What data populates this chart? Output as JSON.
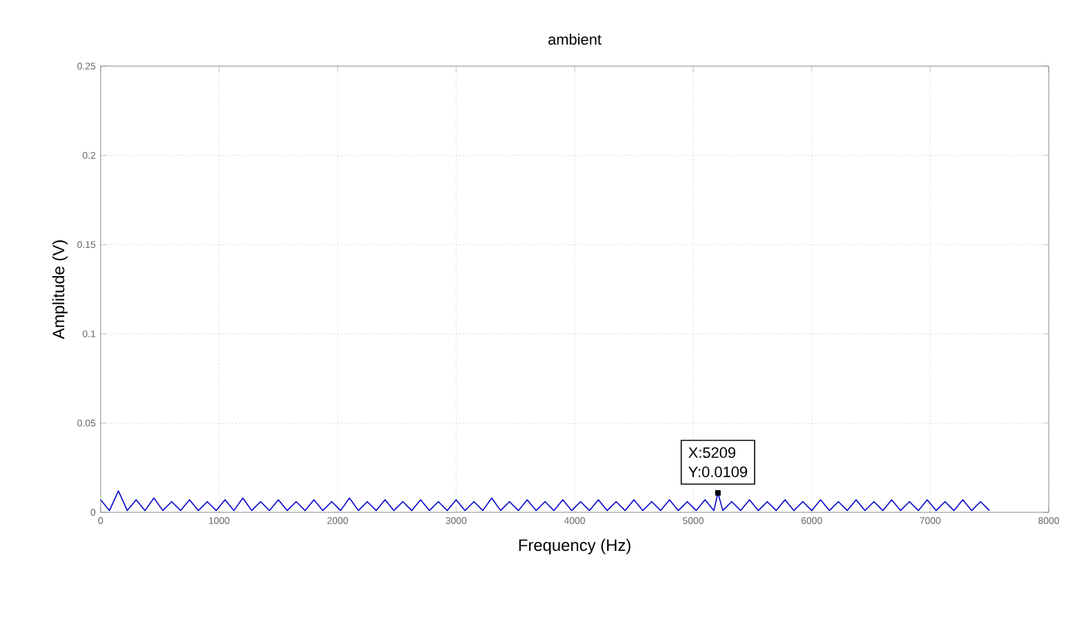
{
  "chart_data": {
    "type": "line",
    "title": "ambient",
    "xlabel": "Frequency (Hz)",
    "ylabel": "Amplitude (V)",
    "xlim": [
      0,
      8000
    ],
    "ylim": [
      0,
      0.25
    ],
    "xticks": [
      0,
      1000,
      2000,
      3000,
      4000,
      5000,
      6000,
      7000,
      8000
    ],
    "yticks": [
      0,
      0.05,
      0.1,
      0.15,
      0.2,
      0.25
    ],
    "grid": true,
    "annotations": [
      {
        "text": "X:5209",
        "x": 5209,
        "y": 0.0109
      },
      {
        "text": "Y:0.0109",
        "x": 5209,
        "y": 0.0109
      }
    ],
    "series": [
      {
        "color": "#0000cc",
        "x": [
          0,
          75,
          150,
          225,
          300,
          375,
          450,
          525,
          600,
          675,
          750,
          825,
          900,
          975,
          1050,
          1125,
          1200,
          1275,
          1350,
          1425,
          1500,
          1575,
          1650,
          1725,
          1800,
          1875,
          1950,
          2025,
          2100,
          2175,
          2250,
          2325,
          2400,
          2475,
          2550,
          2625,
          2700,
          2775,
          2850,
          2925,
          3000,
          3075,
          3150,
          3225,
          3300,
          3375,
          3450,
          3525,
          3600,
          3675,
          3750,
          3825,
          3900,
          3975,
          4050,
          4125,
          4200,
          4275,
          4350,
          4425,
          4500,
          4575,
          4650,
          4725,
          4800,
          4875,
          4950,
          5025,
          5100,
          5175,
          5209,
          5250,
          5325,
          5400,
          5475,
          5550,
          5625,
          5700,
          5775,
          5850,
          5925,
          6000,
          6075,
          6150,
          6225,
          6300,
          6375,
          6450,
          6525,
          6600,
          6675,
          6750,
          6825,
          6900,
          6975,
          7050,
          7125,
          7200,
          7275,
          7350,
          7425,
          7500
        ],
        "values": [
          0.007,
          0.001,
          0.012,
          0.001,
          0.007,
          0.001,
          0.008,
          0.001,
          0.006,
          0.001,
          0.007,
          0.001,
          0.006,
          0.001,
          0.007,
          0.001,
          0.008,
          0.001,
          0.006,
          0.001,
          0.007,
          0.001,
          0.006,
          0.001,
          0.007,
          0.001,
          0.006,
          0.001,
          0.008,
          0.001,
          0.006,
          0.001,
          0.007,
          0.001,
          0.006,
          0.001,
          0.007,
          0.001,
          0.006,
          0.001,
          0.007,
          0.001,
          0.006,
          0.001,
          0.008,
          0.001,
          0.006,
          0.001,
          0.007,
          0.001,
          0.006,
          0.001,
          0.007,
          0.001,
          0.006,
          0.001,
          0.007,
          0.001,
          0.006,
          0.001,
          0.007,
          0.001,
          0.006,
          0.001,
          0.007,
          0.001,
          0.006,
          0.001,
          0.007,
          0.001,
          0.0109,
          0.001,
          0.006,
          0.001,
          0.007,
          0.001,
          0.006,
          0.001,
          0.007,
          0.001,
          0.006,
          0.001,
          0.007,
          0.001,
          0.006,
          0.001,
          0.007,
          0.001,
          0.006,
          0.001,
          0.007,
          0.001,
          0.006,
          0.001,
          0.007,
          0.001,
          0.006,
          0.001,
          0.007,
          0.001,
          0.006,
          0.001
        ]
      }
    ]
  }
}
